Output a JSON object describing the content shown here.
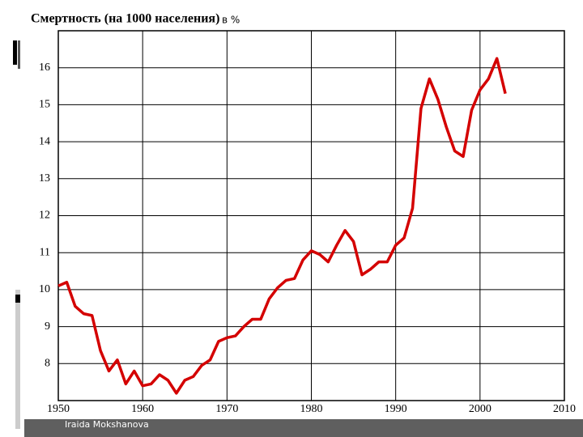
{
  "chart_data": {
    "type": "line",
    "title": "Смертность (на 1000 населения)",
    "subtitle": "в %",
    "footer": "Iraida Mokshanova",
    "x": [
      1950,
      1951,
      1952,
      1953,
      1954,
      1955,
      1956,
      1957,
      1958,
      1959,
      1960,
      1961,
      1962,
      1963,
      1964,
      1965,
      1966,
      1967,
      1968,
      1969,
      1970,
      1971,
      1972,
      1973,
      1974,
      1975,
      1976,
      1977,
      1978,
      1979,
      1980,
      1981,
      1982,
      1983,
      1984,
      1985,
      1986,
      1987,
      1988,
      1989,
      1990,
      1991,
      1992,
      1993,
      1994,
      1995,
      1996,
      1997,
      1998,
      1999,
      2000,
      2001,
      2002,
      2003
    ],
    "series": [
      {
        "color": "#d40000",
        "values": [
          10.1,
          10.2,
          9.55,
          9.35,
          9.3,
          8.35,
          7.8,
          8.1,
          7.45,
          7.8,
          7.4,
          7.45,
          7.7,
          7.55,
          7.2,
          7.55,
          7.65,
          7.95,
          8.1,
          8.6,
          8.7,
          8.75,
          9.0,
          9.2,
          9.2,
          9.75,
          10.05,
          10.25,
          10.3,
          10.8,
          11.05,
          10.95,
          10.75,
          11.2,
          11.6,
          11.3,
          10.4,
          10.55,
          10.75,
          10.75,
          11.2,
          11.4,
          12.2,
          14.9,
          15.7,
          15.15,
          14.4,
          13.75,
          13.6,
          14.85,
          15.4,
          15.7,
          16.25,
          15.3
        ]
      }
    ],
    "xlim": [
      1950,
      2010
    ],
    "xticks": [
      1950,
      1960,
      1970,
      1980,
      1990,
      2000,
      2010
    ],
    "ylim": [
      7,
      17
    ],
    "yticks": [
      8,
      9,
      10,
      11,
      12,
      13,
      14,
      15,
      16
    ],
    "grid": true
  }
}
